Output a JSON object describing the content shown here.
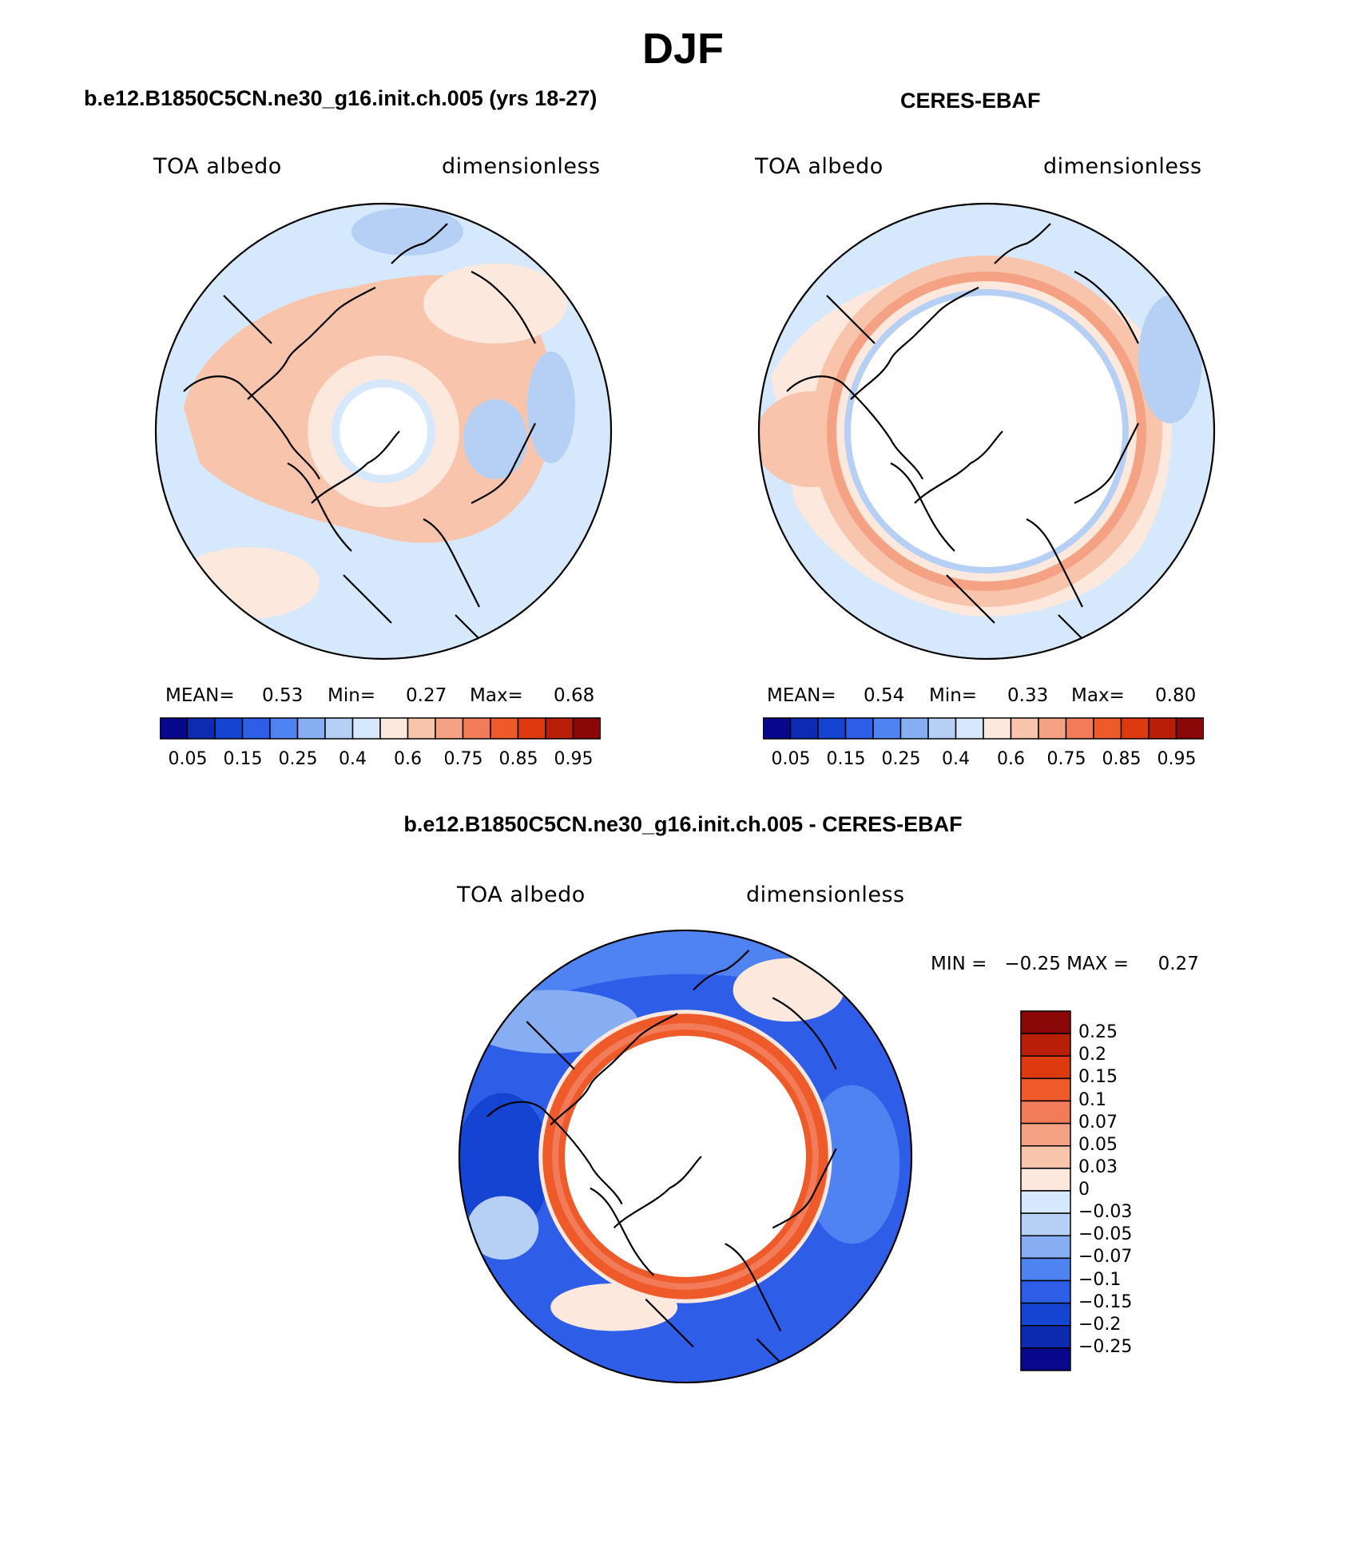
{
  "figure": {
    "title": "DJF",
    "colors": {
      "seq": [
        "#08088c",
        "#0c2bb0",
        "#1544d2",
        "#2e5ee8",
        "#4f83f2",
        "#87aef2",
        "#b5cff5",
        "#d6e8fb",
        "#fce8dc",
        "#f8c4ac",
        "#f5a284",
        "#f27c5a",
        "#ef5a2a",
        "#dd3a10",
        "#b81e08",
        "#8a0808"
      ],
      "diff": [
        "#08088c",
        "#0c2bb0",
        "#1544d2",
        "#2e5ee8",
        "#4f83f2",
        "#87aef2",
        "#b5cff5",
        "#d6e8fb",
        "#fce8dc",
        "#f8c4ac",
        "#f5a284",
        "#f27c5a",
        "#ef5a2a",
        "#dd3a10",
        "#b81e08",
        "#8a0808"
      ]
    }
  },
  "panels": [
    {
      "title": "b.e12.B1850C5CN.ne30_g16.init.ch.005 (yrs 18-27)",
      "left_label": "TOA albedo",
      "right_label": "dimensionless",
      "stats": {
        "mean_label": "MEAN=",
        "mean": "0.53",
        "min_label": "Min=",
        "min": "0.27",
        "max_label": "Max=",
        "max": "0.68"
      },
      "colorbar_ticks": [
        "0.05",
        "0.15",
        "0.25",
        "0.4",
        "0.6",
        "0.75",
        "0.85",
        "0.95"
      ]
    },
    {
      "title": "CERES-EBAF",
      "left_label": "TOA albedo",
      "right_label": "dimensionless",
      "stats": {
        "mean_label": "MEAN=",
        "mean": "0.54",
        "min_label": "Min=",
        "min": "0.33",
        "max_label": "Max=",
        "max": "0.80"
      },
      "colorbar_ticks": [
        "0.05",
        "0.15",
        "0.25",
        "0.4",
        "0.6",
        "0.75",
        "0.85",
        "0.95"
      ]
    }
  ],
  "difference": {
    "title": "b.e12.B1850C5CN.ne30_g16.init.ch.005 - CERES-EBAF",
    "left_label": "TOA albedo",
    "right_label": "dimensionless",
    "minmax": "MIN =   −0.25 MAX =     0.27",
    "colorbar_ticks": [
      "0.25",
      "0.2",
      "0.15",
      "0.1",
      "0.07",
      "0.05",
      "0.03",
      "0",
      "−0.03",
      "−0.05",
      "−0.07",
      "−0.1",
      "−0.15",
      "−0.2",
      "−0.25"
    ]
  }
}
